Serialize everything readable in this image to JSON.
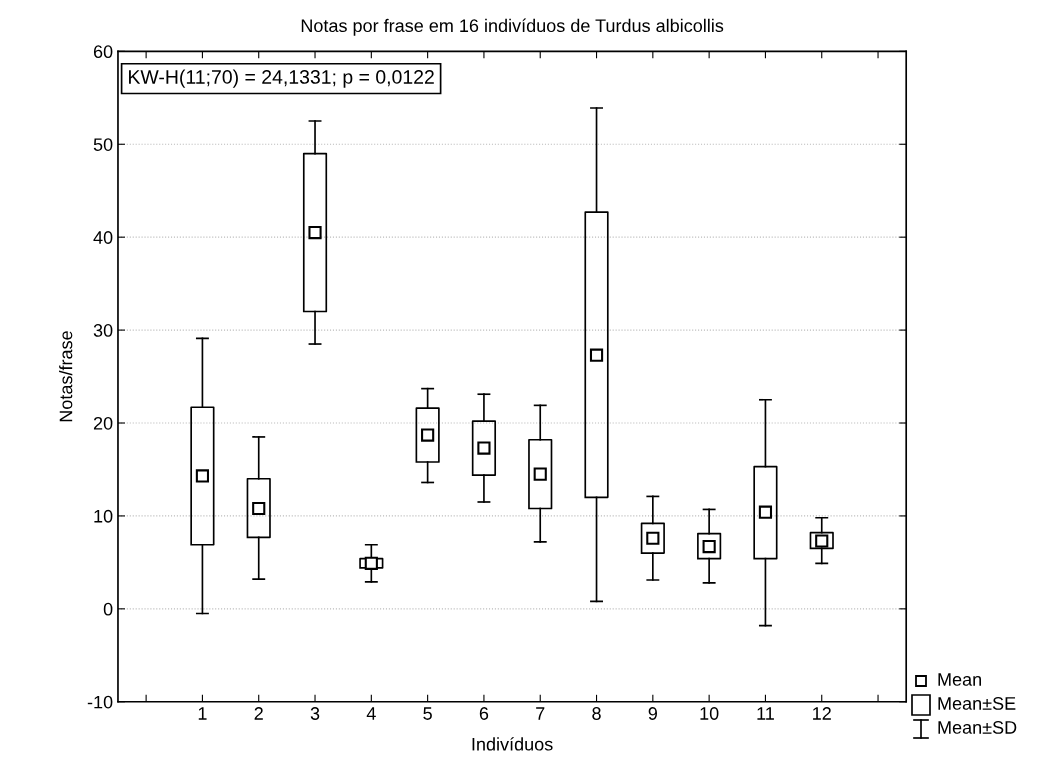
{
  "chart_data": {
    "type": "box",
    "title": "Notas por frase em 16 indivíduos de Turdus albicollis",
    "xlabel": "Indivíduos",
    "ylabel": "Notas/frase",
    "categories": [
      "1",
      "2",
      "3",
      "4",
      "5",
      "6",
      "7",
      "8",
      "9",
      "10",
      "11",
      "12"
    ],
    "boxes": [
      {
        "low": -0.5,
        "q1": 6.9,
        "median": 14.3,
        "q3": 21.7,
        "high": 29.1
      },
      {
        "low": 3.2,
        "q1": 7.7,
        "median": 10.8,
        "q3": 14.0,
        "high": 18.5
      },
      {
        "low": 28.5,
        "q1": 32.0,
        "median": 40.5,
        "q3": 49.0,
        "high": 52.5
      },
      {
        "low": 2.9,
        "q1": 4.4,
        "median": 4.9,
        "q3": 5.4,
        "high": 6.9
      },
      {
        "low": 13.6,
        "q1": 15.8,
        "median": 18.7,
        "q3": 21.6,
        "high": 23.7
      },
      {
        "low": 11.5,
        "q1": 14.4,
        "median": 17.3,
        "q3": 20.2,
        "high": 23.1
      },
      {
        "low": 7.2,
        "q1": 10.8,
        "median": 14.5,
        "q3": 18.2,
        "high": 21.9
      },
      {
        "low": 0.8,
        "q1": 12.0,
        "median": 27.3,
        "q3": 42.7,
        "high": 53.9
      },
      {
        "low": 3.1,
        "q1": 6.0,
        "median": 7.6,
        "q3": 9.2,
        "high": 12.1
      },
      {
        "low": 2.8,
        "q1": 5.4,
        "median": 6.7,
        "q3": 8.1,
        "high": 10.7
      },
      {
        "low": -1.8,
        "q1": 5.4,
        "median": 10.4,
        "q3": 15.3,
        "high": 22.5
      },
      {
        "low": 4.9,
        "q1": 6.5,
        "median": 7.3,
        "q3": 8.2,
        "high": 9.8
      }
    ],
    "ylim": [
      -10,
      60
    ],
    "yticks": [
      -10,
      0,
      10,
      20,
      30,
      40,
      50,
      60
    ],
    "grid": "y",
    "annotations": [
      "KW-H(11;70) = 24,1331; p = 0,0122",
      "Mean",
      "Mean±SE",
      "Mean±SD"
    ]
  }
}
